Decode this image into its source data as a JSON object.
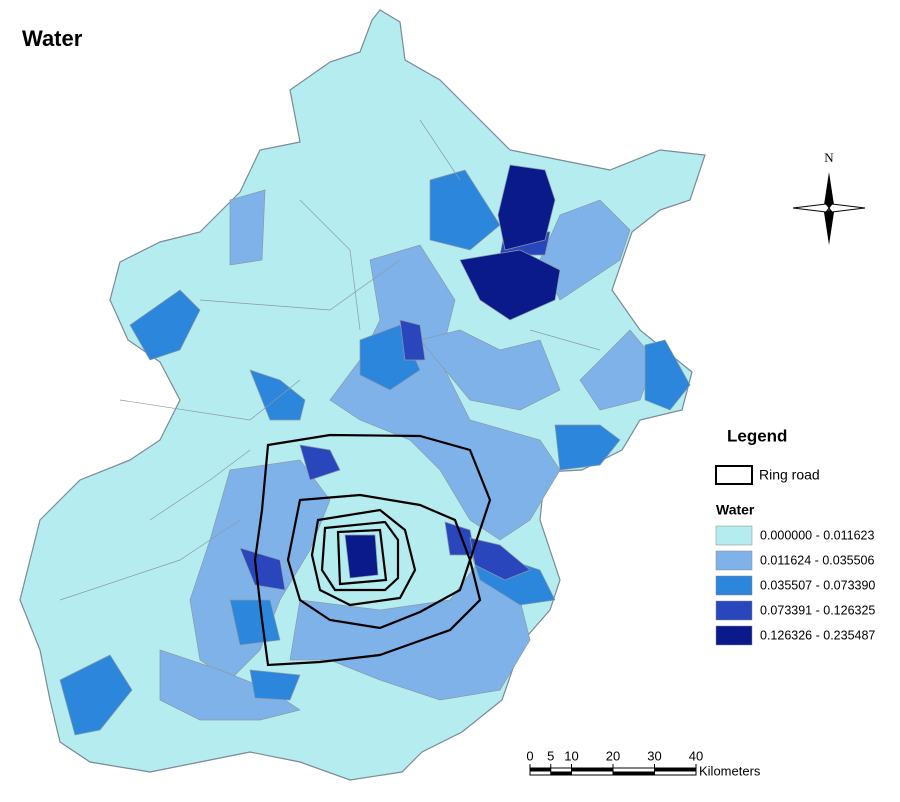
{
  "title": "Water",
  "north_label": "N",
  "legend": {
    "title": "Legend",
    "ring_road": "Ring road",
    "subtitle": "Water",
    "classes": [
      {
        "label": "0.000000 - 0.011623",
        "color": "#b4ecef"
      },
      {
        "label": "0.011624 - 0.035506",
        "color": "#7fb2e9"
      },
      {
        "label": "0.035507 - 0.073390",
        "color": "#2c86dc"
      },
      {
        "label": "0.073391 - 0.126325",
        "color": "#2a46bd"
      },
      {
        "label": "0.126326 - 0.235487",
        "color": "#0b1a8a"
      }
    ]
  },
  "scale_bar": {
    "ticks": [
      0,
      5,
      10,
      20,
      30,
      40
    ],
    "unit": "Kilometers"
  }
}
